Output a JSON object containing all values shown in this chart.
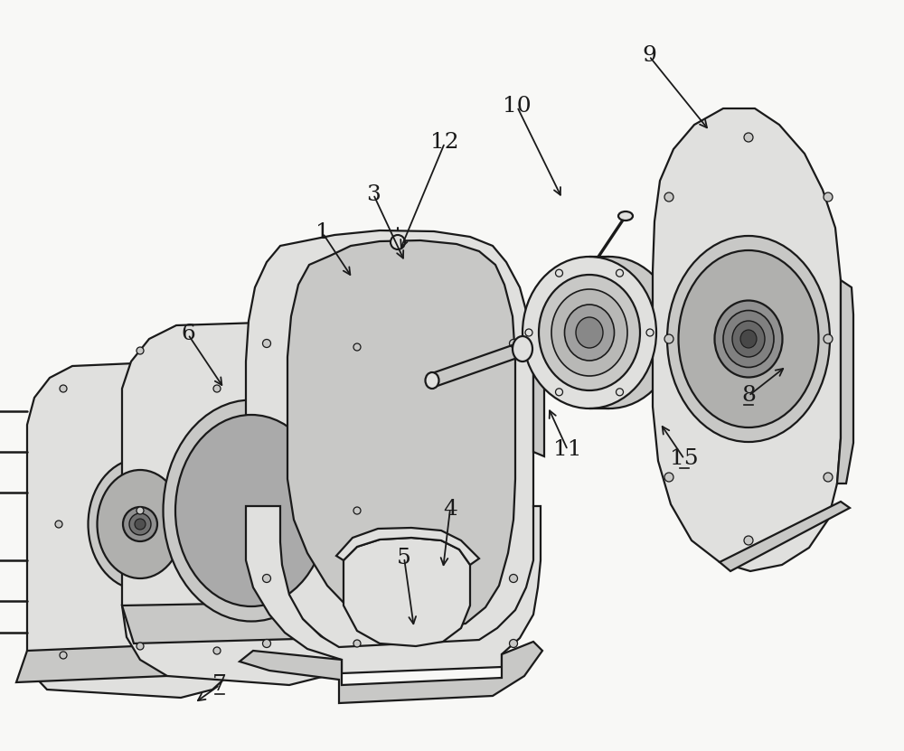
{
  "bg_color": "#f8f8f6",
  "line_color": "#1a1a1a",
  "fill_light": "#f0f0ee",
  "fill_mid": "#e0e0de",
  "fill_dark": "#c8c8c6",
  "font_size": 18,
  "labels": {
    "1": [
      357,
      258,
      390,
      308
    ],
    "3": [
      413,
      215,
      448,
      290
    ],
    "4": [
      498,
      563,
      490,
      630
    ],
    "5": [
      447,
      617,
      458,
      695
    ],
    "6": [
      208,
      370,
      248,
      430
    ],
    "7": [
      243,
      758,
      215,
      778
    ],
    "8": [
      828,
      438,
      870,
      405
    ],
    "9": [
      718,
      62,
      785,
      145
    ],
    "10": [
      572,
      118,
      622,
      220
    ],
    "11": [
      628,
      498,
      606,
      450
    ],
    "12": [
      492,
      158,
      442,
      278
    ],
    "15": [
      757,
      508,
      730,
      468
    ]
  },
  "underlined": [
    "7",
    "8",
    "15"
  ]
}
